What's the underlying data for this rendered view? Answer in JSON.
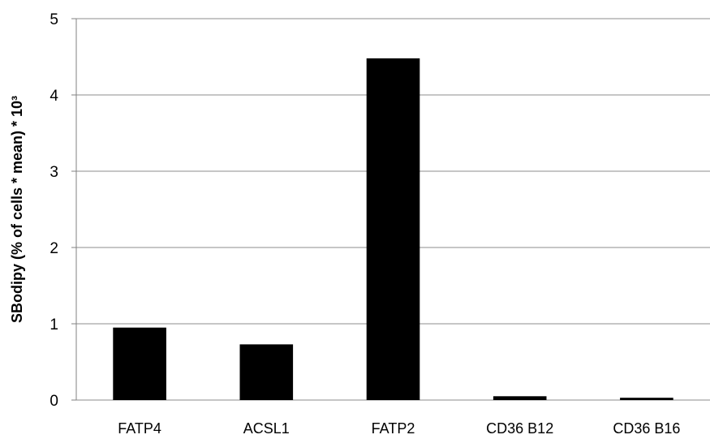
{
  "chart_data": {
    "type": "bar",
    "categories": [
      "FATP4",
      "ACSL1",
      "FATP2",
      "CD36 B12",
      "CD36 B16"
    ],
    "values": [
      0.95,
      0.73,
      4.48,
      0.05,
      0.03
    ],
    "ylabel": "SBodipy  (% of cells * mean) * 10³",
    "ylim": [
      0,
      5
    ],
    "yticks": [
      "0",
      "1",
      "2",
      "3",
      "4",
      "5"
    ],
    "grid": true,
    "bar_color": "#000000"
  }
}
